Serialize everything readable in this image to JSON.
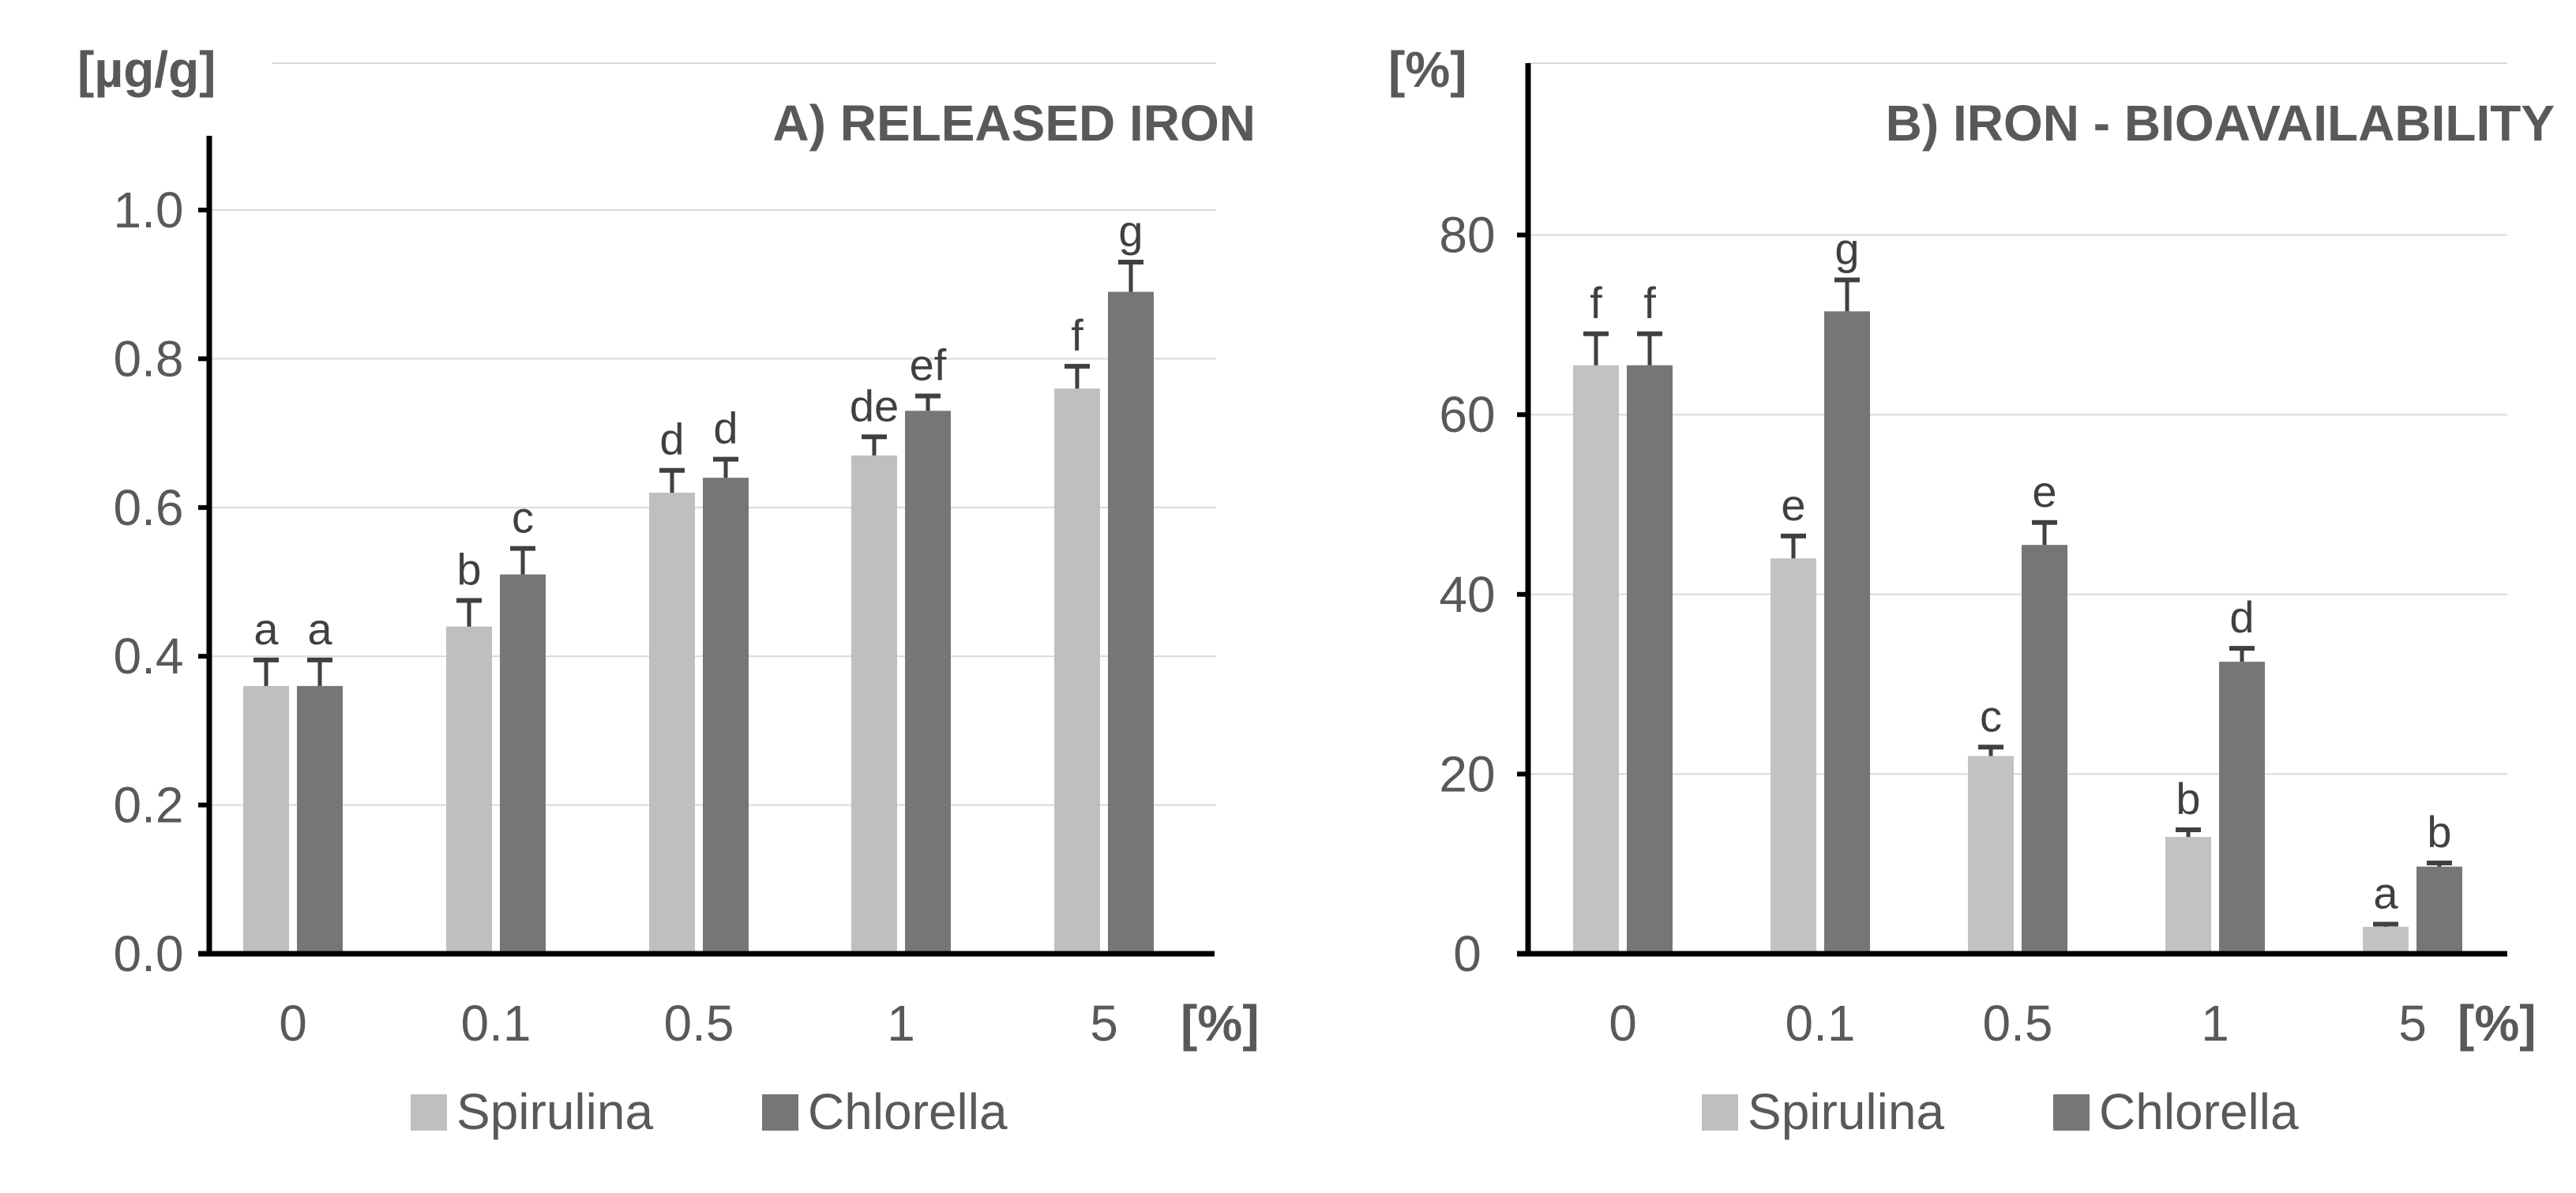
{
  "figure": {
    "legend": {
      "items": [
        {
          "label": "Spirulina",
          "color": "#bfbfbf"
        },
        {
          "label": "Chlorella",
          "color": "#767676"
        }
      ]
    },
    "x_unit": "[%]"
  },
  "chart_data": [
    {
      "type": "bar",
      "title": "A) RELEASED IRON",
      "ylabel": "[µg/g]",
      "xlabel": "[%]",
      "categories": [
        "0",
        "0.1",
        "0.5",
        "1",
        "5"
      ],
      "ylim": [
        0,
        1.1
      ],
      "yticks": [
        "0.0",
        "0.2",
        "0.4",
        "0.6",
        "0.8",
        "1.0"
      ],
      "ytick_values": [
        0,
        0.2,
        0.4,
        0.6,
        0.8,
        1.0
      ],
      "grid": true,
      "series": [
        {
          "name": "Spirulina",
          "values": [
            0.36,
            0.44,
            0.62,
            0.67,
            0.76
          ],
          "errors": [
            0.035,
            0.035,
            0.03,
            0.025,
            0.03
          ],
          "letters": [
            "a",
            "b",
            "d",
            "de",
            "f"
          ]
        },
        {
          "name": "Chlorella",
          "values": [
            0.36,
            0.51,
            0.64,
            0.73,
            0.89
          ],
          "errors": [
            0.035,
            0.035,
            0.025,
            0.02,
            0.04
          ],
          "letters": [
            "a",
            "c",
            "d",
            "ef",
            "g"
          ]
        }
      ]
    },
    {
      "type": "bar",
      "title": "B) IRON - BIOAVAILABILITY",
      "ylabel": "[%]",
      "xlabel": "[%]",
      "categories": [
        "0",
        "0.1",
        "0.5",
        "1",
        "5"
      ],
      "ylim": [
        0,
        100
      ],
      "yticks": [
        "0",
        "20",
        "40",
        "60",
        "80"
      ],
      "ytick_values": [
        0,
        20,
        40,
        60,
        80
      ],
      "grid": true,
      "series": [
        {
          "name": "Spirulina",
          "values": [
            65.5,
            44,
            22,
            13,
            3
          ],
          "errors": [
            3.5,
            2.5,
            1,
            0.8,
            0.3
          ],
          "letters": [
            "f",
            "e",
            "c",
            "b",
            "a"
          ]
        },
        {
          "name": "Chlorella",
          "values": [
            65.5,
            71.5,
            45.5,
            32.5,
            9.7
          ],
          "errors": [
            3.5,
            3.5,
            2.5,
            1.5,
            0.4
          ],
          "letters": [
            "f",
            "g",
            "e",
            "d",
            "b"
          ]
        }
      ]
    }
  ]
}
